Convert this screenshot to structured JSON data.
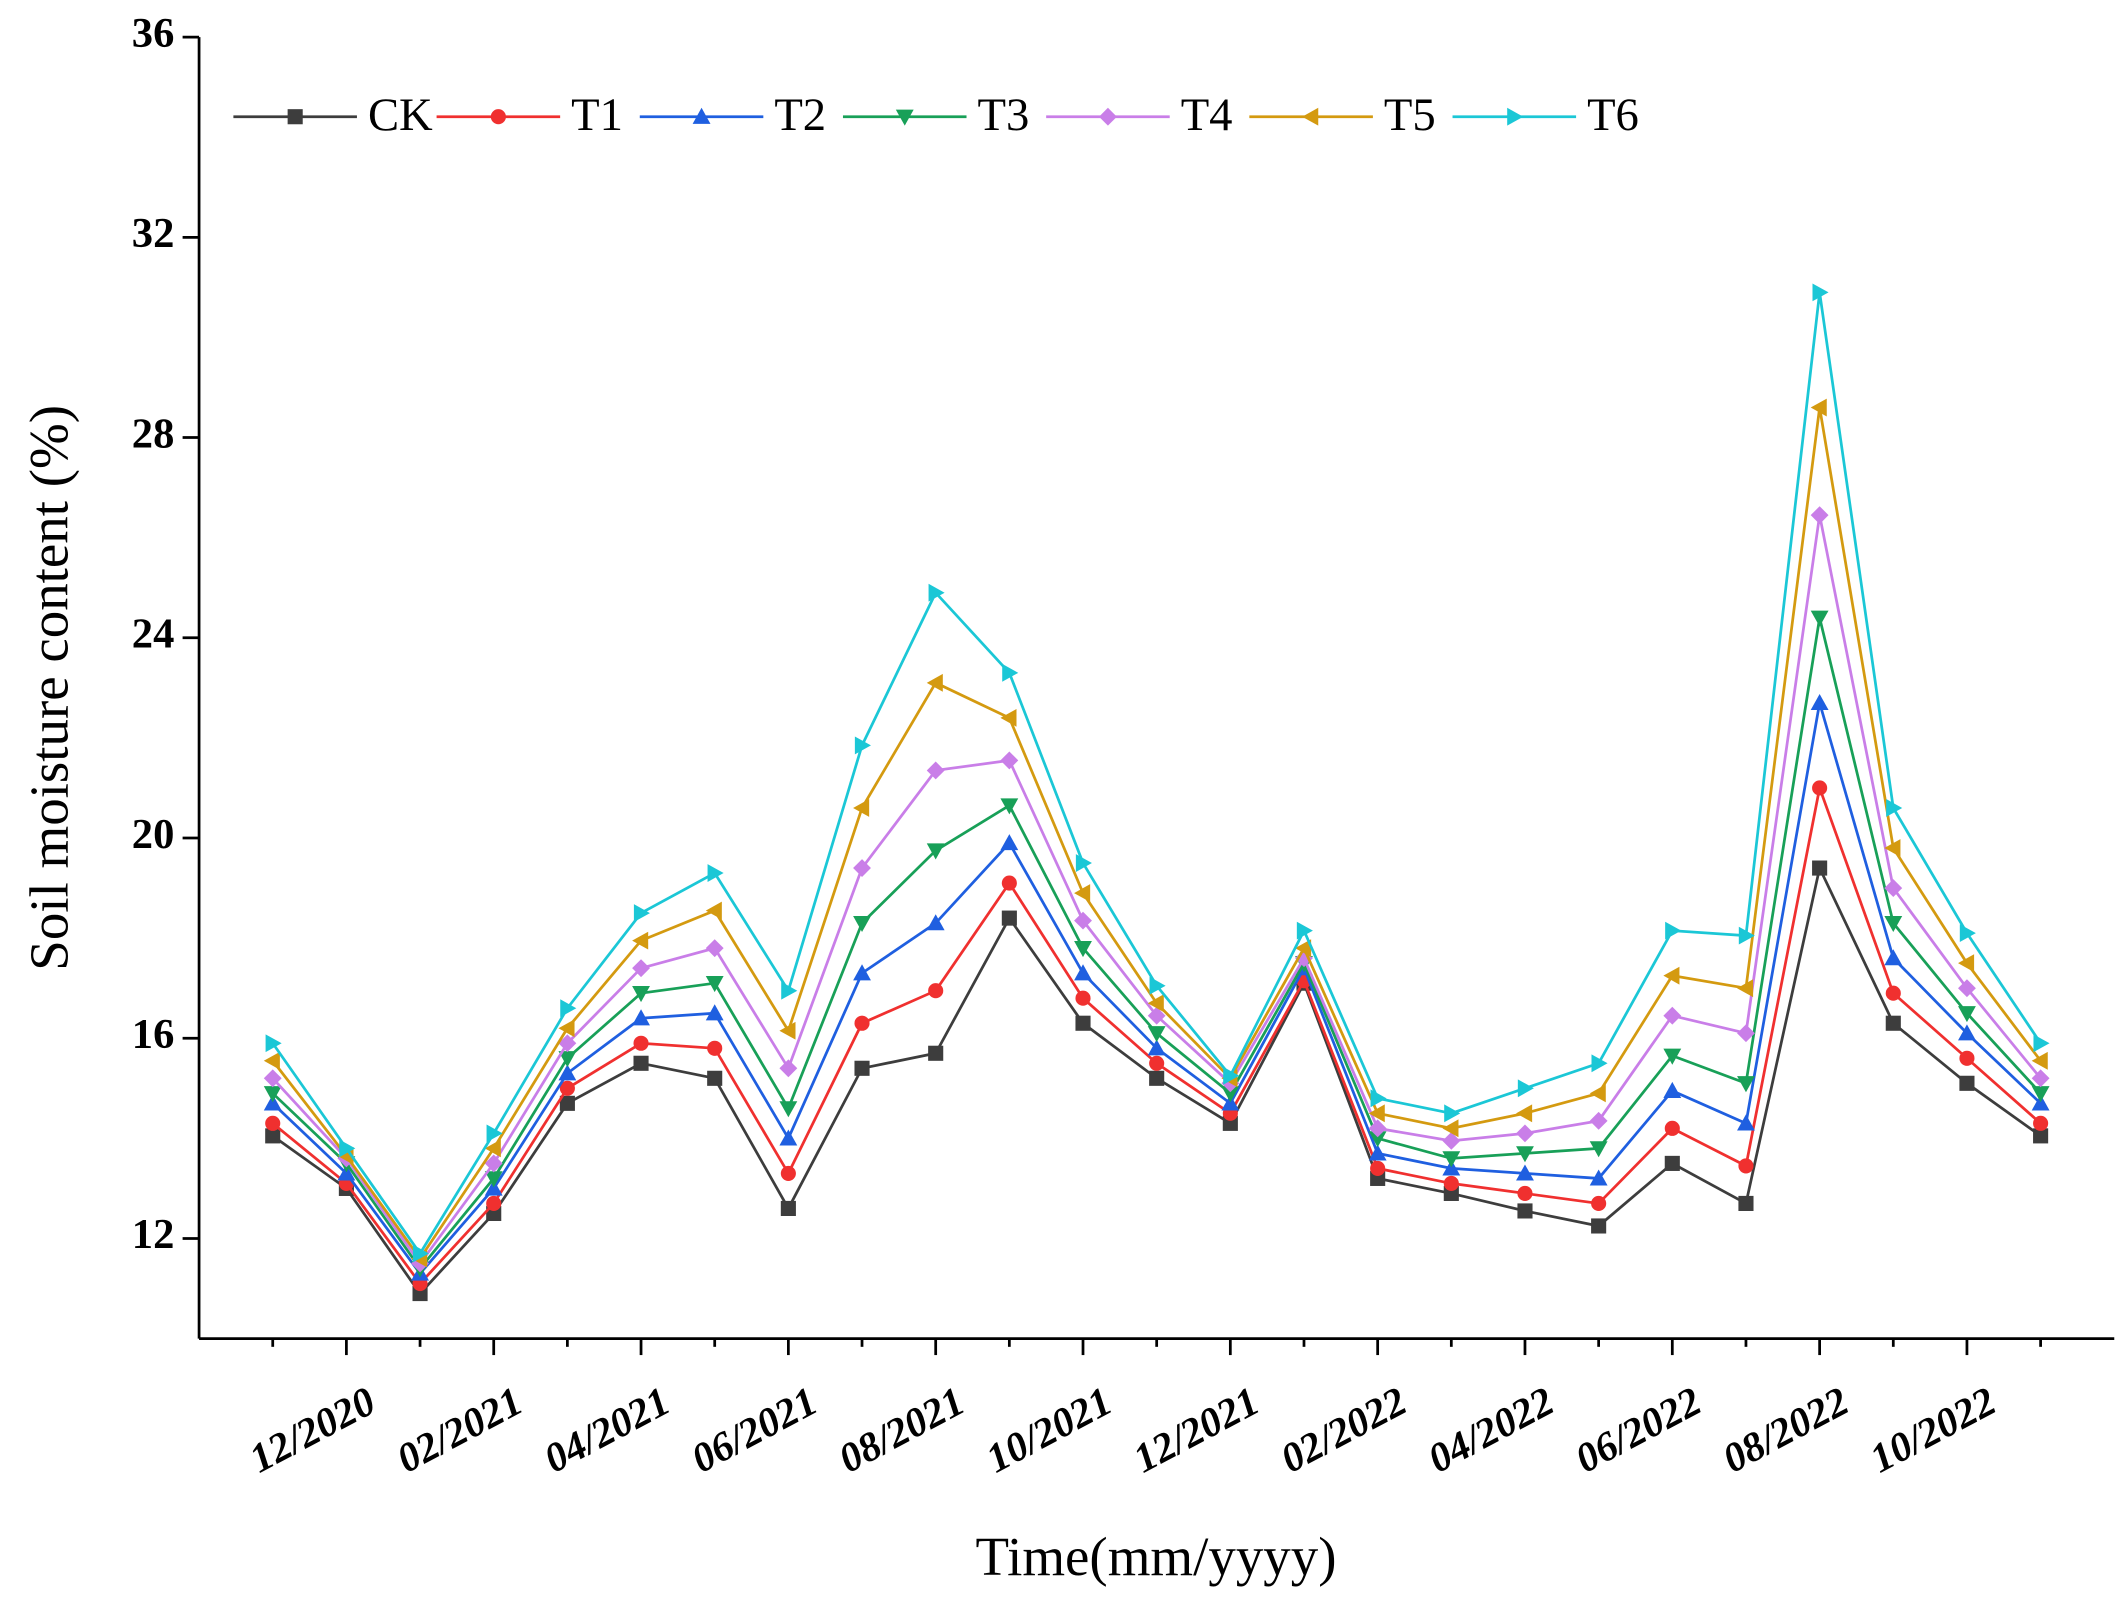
{
  "chart_data": {
    "type": "line",
    "x_label": "Time(mm/yyyy)",
    "y_label": "Soil moisture content (%)",
    "categories": [
      null,
      "12/2020",
      null,
      "02/2021",
      null,
      "04/2021",
      null,
      "06/2021",
      null,
      "08/2021",
      null,
      "10/2021",
      null,
      "12/2021",
      null,
      "02/2022",
      null,
      "04/2022",
      null,
      "06/2022",
      null,
      "08/2022",
      null,
      "10/2022",
      null
    ],
    "ylim": [
      10,
      36
    ],
    "yticks": [
      12,
      16,
      20,
      24,
      28,
      32,
      36
    ],
    "legend": "top-left",
    "series": [
      {
        "name": "CK",
        "color": "#3d3d3d",
        "marker": "square",
        "values": [
          14.05,
          13.0,
          10.9,
          12.5,
          14.7,
          15.5,
          15.2,
          12.6,
          15.4,
          15.7,
          18.4,
          16.3,
          15.2,
          14.3,
          17.1,
          13.2,
          12.9,
          12.55,
          12.25,
          13.5,
          12.7,
          19.4,
          16.3,
          15.1,
          14.05
        ]
      },
      {
        "name": "T1",
        "color": "#f0302f",
        "marker": "circle",
        "values": [
          14.3,
          13.1,
          11.1,
          12.7,
          15.0,
          15.9,
          15.8,
          13.3,
          16.3,
          16.95,
          19.1,
          16.8,
          15.5,
          14.5,
          17.15,
          13.4,
          13.1,
          12.9,
          12.7,
          14.2,
          13.45,
          21.0,
          16.9,
          15.6,
          14.3
        ]
      },
      {
        "name": "T2",
        "color": "#1f5fe0",
        "marker": "triangle-up",
        "values": [
          14.7,
          13.3,
          11.3,
          13.0,
          15.3,
          16.4,
          16.5,
          14.0,
          17.3,
          18.3,
          19.9,
          17.3,
          15.8,
          14.7,
          17.4,
          13.7,
          13.4,
          13.3,
          13.2,
          14.95,
          14.3,
          22.7,
          17.6,
          16.1,
          14.7
        ]
      },
      {
        "name": "T3",
        "color": "#18a058",
        "marker": "triangle-down",
        "values": [
          14.9,
          13.5,
          11.4,
          13.2,
          15.6,
          16.9,
          17.1,
          14.6,
          18.3,
          19.75,
          20.65,
          17.8,
          16.1,
          14.9,
          17.5,
          14.0,
          13.6,
          13.7,
          13.8,
          15.65,
          15.1,
          24.4,
          18.3,
          16.5,
          14.9
        ]
      },
      {
        "name": "T4",
        "color": "#c97ee8",
        "marker": "diamond",
        "values": [
          15.2,
          13.6,
          11.5,
          13.5,
          15.9,
          17.4,
          17.8,
          15.4,
          19.4,
          21.35,
          21.55,
          18.35,
          16.45,
          15.1,
          17.6,
          14.2,
          13.95,
          14.1,
          14.35,
          16.45,
          16.1,
          26.45,
          19.0,
          17.0,
          15.2
        ]
      },
      {
        "name": "T5",
        "color": "#d49a10",
        "marker": "triangle-left",
        "values": [
          15.55,
          13.65,
          11.6,
          13.8,
          16.2,
          17.95,
          18.55,
          16.15,
          20.6,
          23.1,
          22.4,
          18.9,
          16.7,
          15.2,
          17.8,
          14.5,
          14.2,
          14.5,
          14.9,
          17.25,
          17.0,
          28.6,
          19.8,
          17.5,
          15.55
        ]
      },
      {
        "name": "T6",
        "color": "#1bc7d6",
        "marker": "triangle-right",
        "values": [
          15.9,
          13.8,
          11.7,
          14.1,
          16.6,
          18.5,
          19.3,
          16.95,
          21.85,
          24.9,
          23.3,
          19.5,
          17.05,
          15.25,
          18.15,
          14.8,
          14.5,
          15.0,
          15.5,
          18.15,
          18.05,
          30.9,
          20.6,
          18.1,
          15.9
        ]
      }
    ]
  }
}
